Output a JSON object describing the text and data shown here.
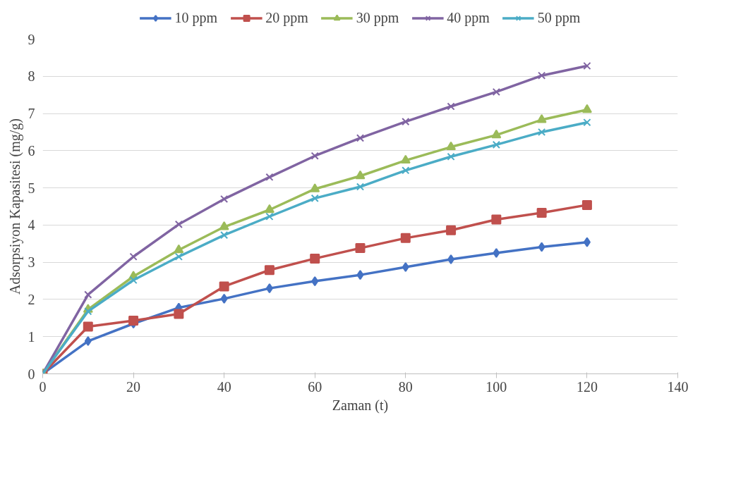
{
  "chart_data": {
    "type": "line",
    "xlabel": "Zaman (t)",
    "ylabel": "Adsorpsiyon Kapasitesi (mg/g)",
    "x": [
      0,
      10,
      20,
      30,
      40,
      50,
      60,
      70,
      80,
      90,
      100,
      110,
      120
    ],
    "xlim": [
      0,
      140
    ],
    "xticks": [
      0,
      20,
      40,
      60,
      80,
      100,
      120,
      140
    ],
    "ylim": [
      0,
      9
    ],
    "yticks": [
      0,
      1,
      2,
      3,
      4,
      5,
      6,
      7,
      8,
      9
    ],
    "grid": "y",
    "legend": "top",
    "line_style": "solid",
    "series": [
      {
        "name": "10 ppm",
        "color": "#4472c4",
        "marker": "diamond",
        "values": [
          0,
          0.88,
          1.35,
          1.78,
          2.02,
          2.3,
          2.49,
          2.66,
          2.87,
          3.08,
          3.25,
          3.41,
          3.54
        ]
      },
      {
        "name": "20 ppm",
        "color": "#c0504d",
        "marker": "square",
        "values": [
          0,
          1.27,
          1.43,
          1.61,
          2.35,
          2.79,
          3.1,
          3.38,
          3.65,
          3.86,
          4.15,
          4.33,
          4.54
        ]
      },
      {
        "name": "30 ppm",
        "color": "#9bbb59",
        "marker": "triangle",
        "values": [
          0,
          1.73,
          2.62,
          3.33,
          3.95,
          4.41,
          4.97,
          5.32,
          5.74,
          6.1,
          6.42,
          6.83,
          7.1
        ]
      },
      {
        "name": "40 ppm",
        "color": "#8064a2",
        "marker": "cross",
        "values": [
          0,
          2.13,
          3.15,
          4.02,
          4.7,
          5.29,
          5.86,
          6.34,
          6.78,
          7.19,
          7.58,
          8.02,
          8.28
        ]
      },
      {
        "name": "50 ppm",
        "color": "#4bacc6",
        "marker": "cross",
        "values": [
          0,
          1.68,
          2.52,
          3.15,
          3.73,
          4.23,
          4.72,
          5.03,
          5.47,
          5.84,
          6.16,
          6.5,
          6.76
        ]
      }
    ]
  }
}
